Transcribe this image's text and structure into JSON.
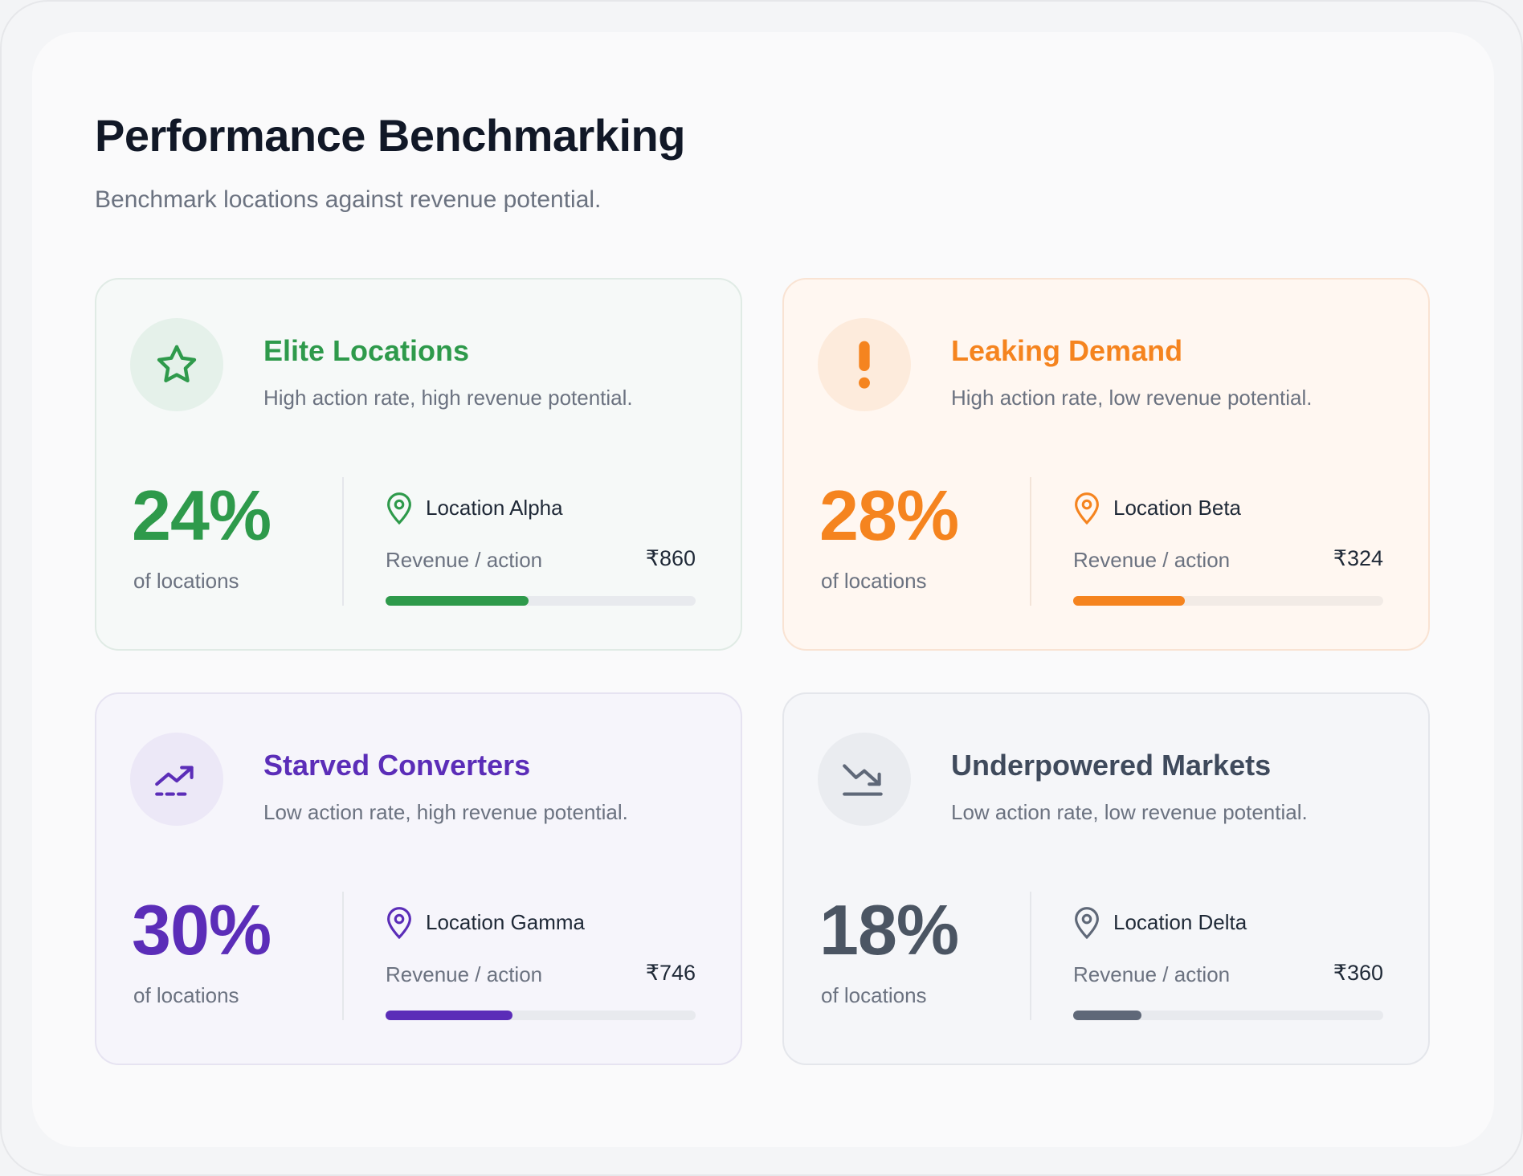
{
  "header": {
    "title": "Performance Benchmarking",
    "subtitle": "Benchmark locations against revenue potential."
  },
  "cards": [
    {
      "title": "Elite Locations",
      "description": "High action rate, high revenue potential.",
      "percent": "24%",
      "percent_label": "of locations",
      "location": "Location Alpha",
      "revenue_label": "Revenue / action",
      "revenue_value": "₹860",
      "progress": 0.46,
      "icon": "star-icon",
      "color": "#2e9a4b"
    },
    {
      "title": "Leaking Demand",
      "description": "High action rate, low revenue potential.",
      "percent": "28%",
      "percent_label": "of locations",
      "location": "Location Beta",
      "revenue_label": "Revenue / action",
      "revenue_value": "₹324",
      "progress": 0.36,
      "icon": "exclamation-icon",
      "color": "#f5841f"
    },
    {
      "title": "Starved Converters",
      "description": "Low action rate, high revenue potential.",
      "percent": "30%",
      "percent_label": "of locations",
      "location": "Location Gamma",
      "revenue_label": "Revenue / action",
      "revenue_value": "₹746",
      "progress": 0.41,
      "icon": "trending-up-icon",
      "color": "#5b2db8"
    },
    {
      "title": "Underpowered Markets",
      "description": "Low action rate, low revenue potential.",
      "percent": "18%",
      "percent_label": "of locations",
      "location": "Location Delta",
      "revenue_label": "Revenue / action",
      "revenue_value": "₹360",
      "progress": 0.22,
      "icon": "trending-down-icon",
      "color": "#5f6878"
    }
  ]
}
